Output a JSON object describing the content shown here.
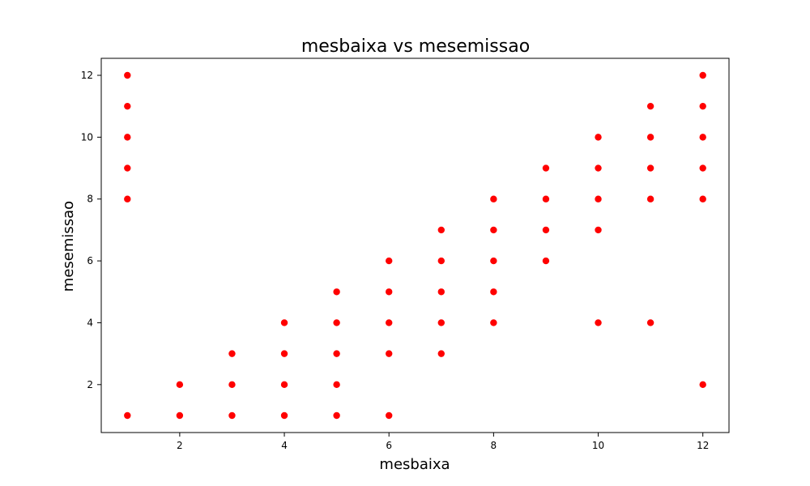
{
  "chart_data": {
    "type": "scatter",
    "title": "mesbaixa vs mesemissao",
    "xlabel": "mesbaixa",
    "ylabel": "mesemissao",
    "xlim": [
      0.5,
      12.5
    ],
    "ylim": [
      0.45,
      12.55
    ],
    "xticks": [
      2,
      4,
      6,
      8,
      10,
      12
    ],
    "yticks": [
      2,
      4,
      6,
      8,
      10,
      12
    ],
    "grid": false,
    "marker_color": "#ff0000",
    "points": [
      {
        "x": 1,
        "y": 1
      },
      {
        "x": 1,
        "y": 8
      },
      {
        "x": 1,
        "y": 9
      },
      {
        "x": 1,
        "y": 10
      },
      {
        "x": 1,
        "y": 11
      },
      {
        "x": 1,
        "y": 12
      },
      {
        "x": 2,
        "y": 1
      },
      {
        "x": 2,
        "y": 2
      },
      {
        "x": 3,
        "y": 1
      },
      {
        "x": 3,
        "y": 2
      },
      {
        "x": 3,
        "y": 3
      },
      {
        "x": 4,
        "y": 1
      },
      {
        "x": 4,
        "y": 2
      },
      {
        "x": 4,
        "y": 3
      },
      {
        "x": 4,
        "y": 4
      },
      {
        "x": 5,
        "y": 1
      },
      {
        "x": 5,
        "y": 2
      },
      {
        "x": 5,
        "y": 3
      },
      {
        "x": 5,
        "y": 4
      },
      {
        "x": 5,
        "y": 5
      },
      {
        "x": 6,
        "y": 1
      },
      {
        "x": 6,
        "y": 3
      },
      {
        "x": 6,
        "y": 4
      },
      {
        "x": 6,
        "y": 5
      },
      {
        "x": 6,
        "y": 6
      },
      {
        "x": 7,
        "y": 3
      },
      {
        "x": 7,
        "y": 4
      },
      {
        "x": 7,
        "y": 5
      },
      {
        "x": 7,
        "y": 6
      },
      {
        "x": 7,
        "y": 7
      },
      {
        "x": 8,
        "y": 4
      },
      {
        "x": 8,
        "y": 5
      },
      {
        "x": 8,
        "y": 6
      },
      {
        "x": 8,
        "y": 7
      },
      {
        "x": 8,
        "y": 8
      },
      {
        "x": 9,
        "y": 6
      },
      {
        "x": 9,
        "y": 7
      },
      {
        "x": 9,
        "y": 8
      },
      {
        "x": 9,
        "y": 9
      },
      {
        "x": 10,
        "y": 4
      },
      {
        "x": 10,
        "y": 7
      },
      {
        "x": 10,
        "y": 8
      },
      {
        "x": 10,
        "y": 9
      },
      {
        "x": 10,
        "y": 10
      },
      {
        "x": 11,
        "y": 4
      },
      {
        "x": 11,
        "y": 8
      },
      {
        "x": 11,
        "y": 9
      },
      {
        "x": 11,
        "y": 10
      },
      {
        "x": 11,
        "y": 11
      },
      {
        "x": 12,
        "y": 2
      },
      {
        "x": 12,
        "y": 8
      },
      {
        "x": 12,
        "y": 9
      },
      {
        "x": 12,
        "y": 10
      },
      {
        "x": 12,
        "y": 11
      },
      {
        "x": 12,
        "y": 12
      }
    ]
  }
}
